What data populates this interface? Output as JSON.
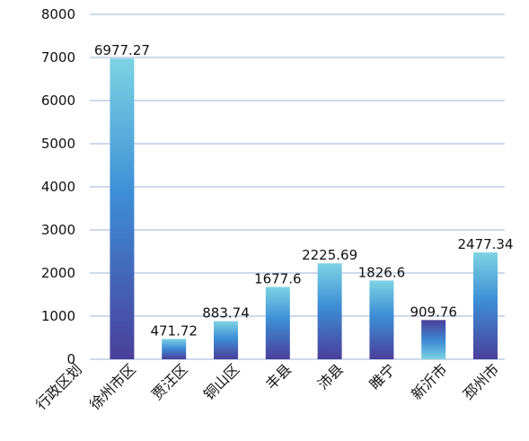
{
  "chart_data": {
    "type": "bar",
    "axis_label": "行政区划",
    "categories": [
      "徐州市区",
      "贾汪区",
      "铜山区",
      "丰县",
      "沛县",
      "睢宁",
      "新沂市",
      "邳州市"
    ],
    "values": [
      6977.27,
      471.72,
      883.74,
      1677.6,
      2225.69,
      1826.6,
      909.76,
      2477.34
    ],
    "value_labels": [
      "6977.27",
      "471.72",
      "883.74",
      "1677.6",
      "2225.69",
      "1826.6",
      "909.76",
      "2477.34"
    ],
    "yticks": [
      "0",
      "1000",
      "2000",
      "3000",
      "4000",
      "5000",
      "6000",
      "7000",
      "8000"
    ],
    "ylim": [
      0,
      8000
    ],
    "grid": true,
    "legend": "none",
    "colors": {
      "bar_top": "#7dd3e3",
      "bar_mid": "#3d8ed6",
      "bar_bottom": "#4a3f9a",
      "grid": "#9bb3d9"
    }
  }
}
